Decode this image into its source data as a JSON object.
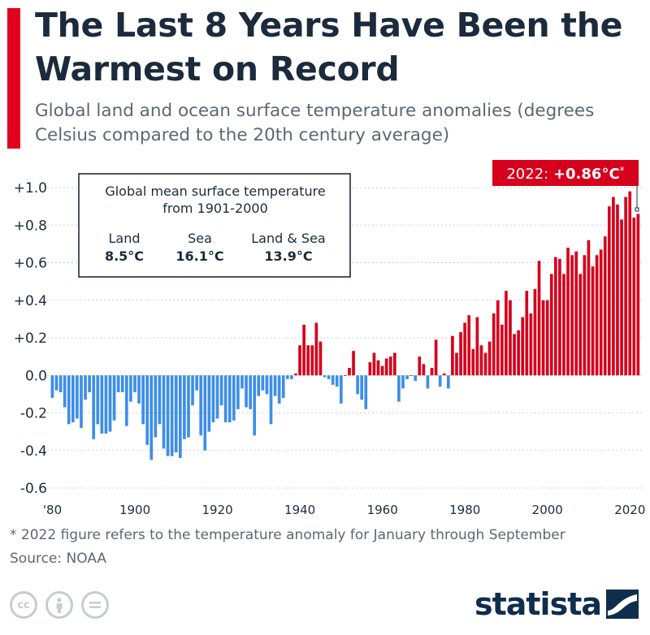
{
  "title": "The Last 8 Years Have Been the Warmest on Record",
  "subtitle": "Global land and ocean surface temperature anomalies (degrees Celsius compared to the 20th century average)",
  "callout": {
    "label": "2022: ",
    "value": "+0.86°C",
    "mark": "*"
  },
  "info_box": {
    "heading": "Global mean surface temperature",
    "subheading": "from 1901-2000",
    "items": [
      {
        "label": "Land",
        "value": "8.5°C"
      },
      {
        "label": "Sea",
        "value": "16.1°C"
      },
      {
        "label": "Land & Sea",
        "value": "13.9°C"
      }
    ]
  },
  "footnote": "* 2022 figure refers to the temperature anomaly for January through September",
  "source": "Source: NOAA",
  "brand": "statista",
  "license_icons": [
    "cc-icon",
    "attribution-icon",
    "no-derivatives-icon"
  ],
  "colors": {
    "accent": "#e1001e",
    "warm": "#d6001c",
    "cool": "#3d8ee8",
    "text": "#1b2b3c",
    "muted": "#5b6872"
  },
  "chart_data": {
    "type": "bar",
    "ylim": [
      -0.6,
      1.0
    ],
    "yticks": [
      1.0,
      0.8,
      0.6,
      0.4,
      0.2,
      0.0,
      -0.2,
      -0.4,
      -0.6
    ],
    "ytick_labels": [
      "+1.0",
      "+0.8",
      "+0.6",
      "+0.4",
      "+0.2",
      "0.0",
      "-0.2",
      "-0.4",
      "-0.6"
    ],
    "xtick_labels": [
      {
        "year": 1880,
        "label": "'80"
      },
      {
        "year": 1900,
        "label": "1900"
      },
      {
        "year": 1920,
        "label": "1920"
      },
      {
        "year": 1940,
        "label": "1940"
      },
      {
        "year": 1960,
        "label": "1960"
      },
      {
        "year": 1980,
        "label": "1980"
      },
      {
        "year": 2000,
        "label": "2000"
      },
      {
        "year": 2020,
        "label": "2020"
      }
    ],
    "grid": "horizontal",
    "x": [
      1880,
      1881,
      1882,
      1883,
      1884,
      1885,
      1886,
      1887,
      1888,
      1889,
      1890,
      1891,
      1892,
      1893,
      1894,
      1895,
      1896,
      1897,
      1898,
      1899,
      1900,
      1901,
      1902,
      1903,
      1904,
      1905,
      1906,
      1907,
      1908,
      1909,
      1910,
      1911,
      1912,
      1913,
      1914,
      1915,
      1916,
      1917,
      1918,
      1919,
      1920,
      1921,
      1922,
      1923,
      1924,
      1925,
      1926,
      1927,
      1928,
      1929,
      1930,
      1931,
      1932,
      1933,
      1934,
      1935,
      1936,
      1937,
      1938,
      1939,
      1940,
      1941,
      1942,
      1943,
      1944,
      1945,
      1946,
      1947,
      1948,
      1949,
      1950,
      1951,
      1952,
      1953,
      1954,
      1955,
      1956,
      1957,
      1958,
      1959,
      1960,
      1961,
      1962,
      1963,
      1964,
      1965,
      1966,
      1967,
      1968,
      1969,
      1970,
      1971,
      1972,
      1973,
      1974,
      1975,
      1976,
      1977,
      1978,
      1979,
      1980,
      1981,
      1982,
      1983,
      1984,
      1985,
      1986,
      1987,
      1988,
      1989,
      1990,
      1991,
      1992,
      1993,
      1994,
      1995,
      1996,
      1997,
      1998,
      1999,
      2000,
      2001,
      2002,
      2003,
      2004,
      2005,
      2006,
      2007,
      2008,
      2009,
      2010,
      2011,
      2012,
      2013,
      2014,
      2015,
      2016,
      2017,
      2018,
      2019,
      2020,
      2021,
      2022
    ],
    "values": [
      -0.12,
      -0.08,
      -0.09,
      -0.17,
      -0.26,
      -0.25,
      -0.23,
      -0.28,
      -0.13,
      -0.09,
      -0.34,
      -0.26,
      -0.31,
      -0.31,
      -0.3,
      -0.24,
      -0.09,
      -0.09,
      -0.27,
      -0.14,
      -0.09,
      -0.15,
      -0.26,
      -0.37,
      -0.45,
      -0.33,
      -0.26,
      -0.39,
      -0.43,
      -0.43,
      -0.41,
      -0.44,
      -0.34,
      -0.33,
      -0.16,
      -0.08,
      -0.32,
      -0.4,
      -0.3,
      -0.25,
      -0.23,
      -0.16,
      -0.25,
      -0.25,
      -0.24,
      -0.18,
      -0.07,
      -0.17,
      -0.18,
      -0.32,
      -0.11,
      -0.08,
      -0.1,
      -0.26,
      -0.11,
      -0.15,
      -0.12,
      -0.02,
      -0.02,
      0.01,
      0.16,
      0.27,
      0.16,
      0.16,
      0.28,
      0.18,
      -0.01,
      -0.02,
      -0.05,
      -0.06,
      -0.15,
      0.0,
      0.04,
      0.13,
      -0.1,
      -0.13,
      -0.18,
      0.07,
      0.12,
      0.08,
      0.05,
      0.09,
      0.1,
      0.12,
      -0.14,
      -0.07,
      -0.02,
      0.0,
      -0.03,
      0.1,
      0.06,
      -0.07,
      0.04,
      0.19,
      -0.06,
      0.01,
      -0.07,
      0.21,
      0.12,
      0.23,
      0.28,
      0.32,
      0.14,
      0.31,
      0.16,
      0.12,
      0.18,
      0.33,
      0.4,
      0.27,
      0.45,
      0.4,
      0.22,
      0.24,
      0.31,
      0.45,
      0.33,
      0.46,
      0.61,
      0.4,
      0.4,
      0.54,
      0.63,
      0.62,
      0.54,
      0.68,
      0.64,
      0.66,
      0.54,
      0.64,
      0.72,
      0.58,
      0.64,
      0.67,
      0.74,
      0.9,
      0.95,
      0.91,
      0.83,
      0.95,
      0.98,
      0.84,
      0.86
    ]
  }
}
